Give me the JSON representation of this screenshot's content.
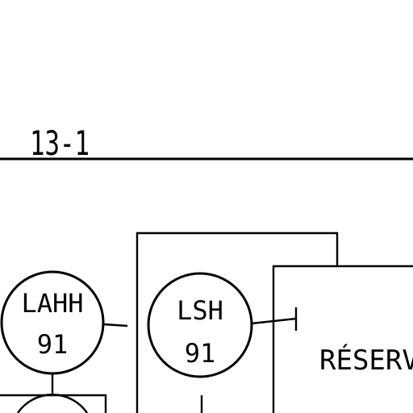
{
  "line_label": "13-1",
  "instruments": [
    {
      "tag": "LAHH",
      "number": "91"
    },
    {
      "tag": "LSH",
      "number": "91"
    }
  ],
  "vessel": {
    "label": "RÉSERVO"
  }
}
